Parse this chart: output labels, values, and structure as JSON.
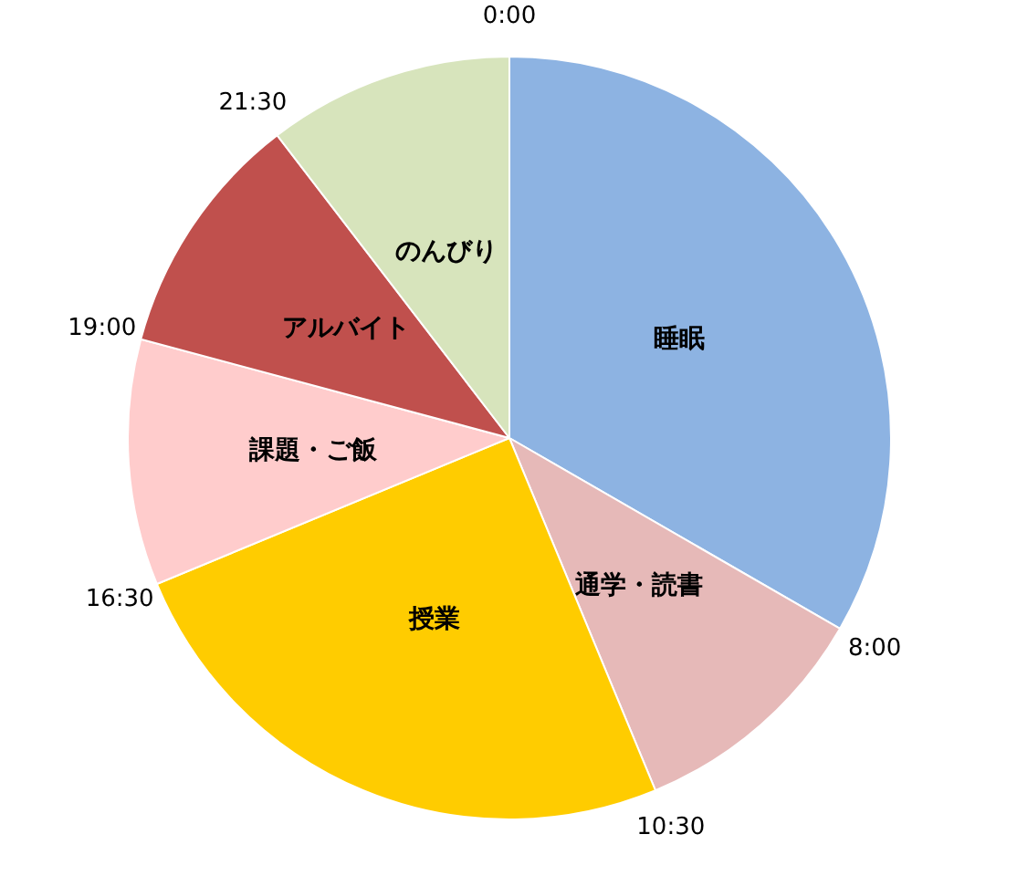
{
  "chart_data": {
    "type": "pie",
    "categories": [
      "睡眠",
      "通学・読書",
      "授業",
      "課題・ご飯",
      "アルバイト",
      "のんびり"
    ],
    "values": [
      33.33,
      10.42,
      25,
      10.42,
      10.42,
      10.41
    ],
    "colors": [
      "#8db3e2",
      "#e6b9b8",
      "#ffcc00",
      "#ffcccc",
      "#c0504d",
      "#d7e4bc"
    ],
    "annotations": [
      "0:00",
      "8:00",
      "10:30",
      "16:30",
      "19:00",
      "21:30"
    ]
  }
}
